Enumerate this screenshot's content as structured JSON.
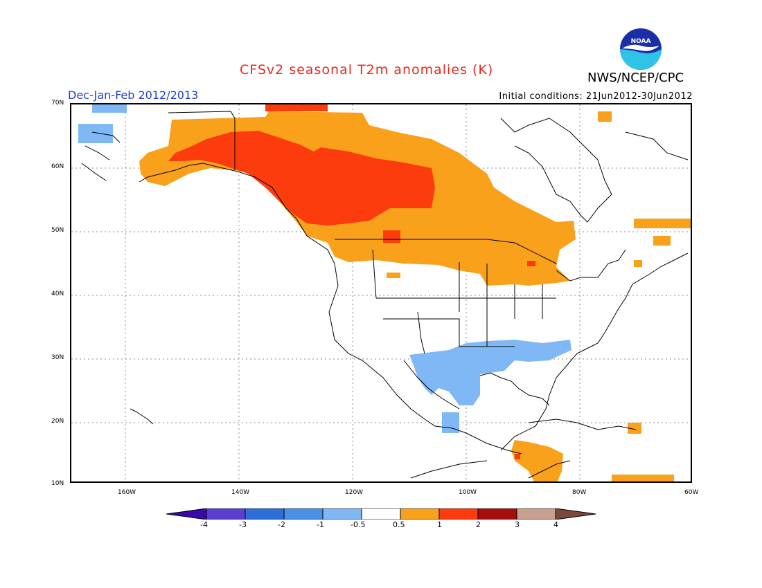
{
  "header": {
    "title": "CFSv2 seasonal T2m anomalies (K)",
    "org": "NWS/NCEP/CPC",
    "season": "Dec-Jan-Feb 2012/2013",
    "initial_conditions": "Initial conditions: 21Jun2012-30Jun2012",
    "logo_text": "NOAA"
  },
  "map": {
    "lat_labels": [
      "70N",
      "60N",
      "50N",
      "40N",
      "30N",
      "20N",
      "10N"
    ],
    "lon_labels": [
      "160W",
      "140W",
      "120W",
      "100W",
      "80W",
      "60W"
    ],
    "colors": {
      "warm_light": "#f9a11b",
      "warm_mid": "#fd3c0e",
      "warm_dark": "#b10b0b",
      "cool_light": "#7fb8f5",
      "cool_mid": "#4a90e8",
      "land_line": "#000000"
    }
  },
  "colorbar": {
    "labels": [
      "-4",
      "-3",
      "-2",
      "-1",
      "-0.5",
      "0.5",
      "1",
      "2",
      "3",
      "4"
    ],
    "colors": [
      "#3a0aa8",
      "#5a3fd1",
      "#2c6fd6",
      "#4a90e8",
      "#7fb8f5",
      "#ffffff",
      "#f9a11b",
      "#fd3c0e",
      "#a80d0d",
      "#c7a08f",
      "#7b4a3b"
    ]
  }
}
